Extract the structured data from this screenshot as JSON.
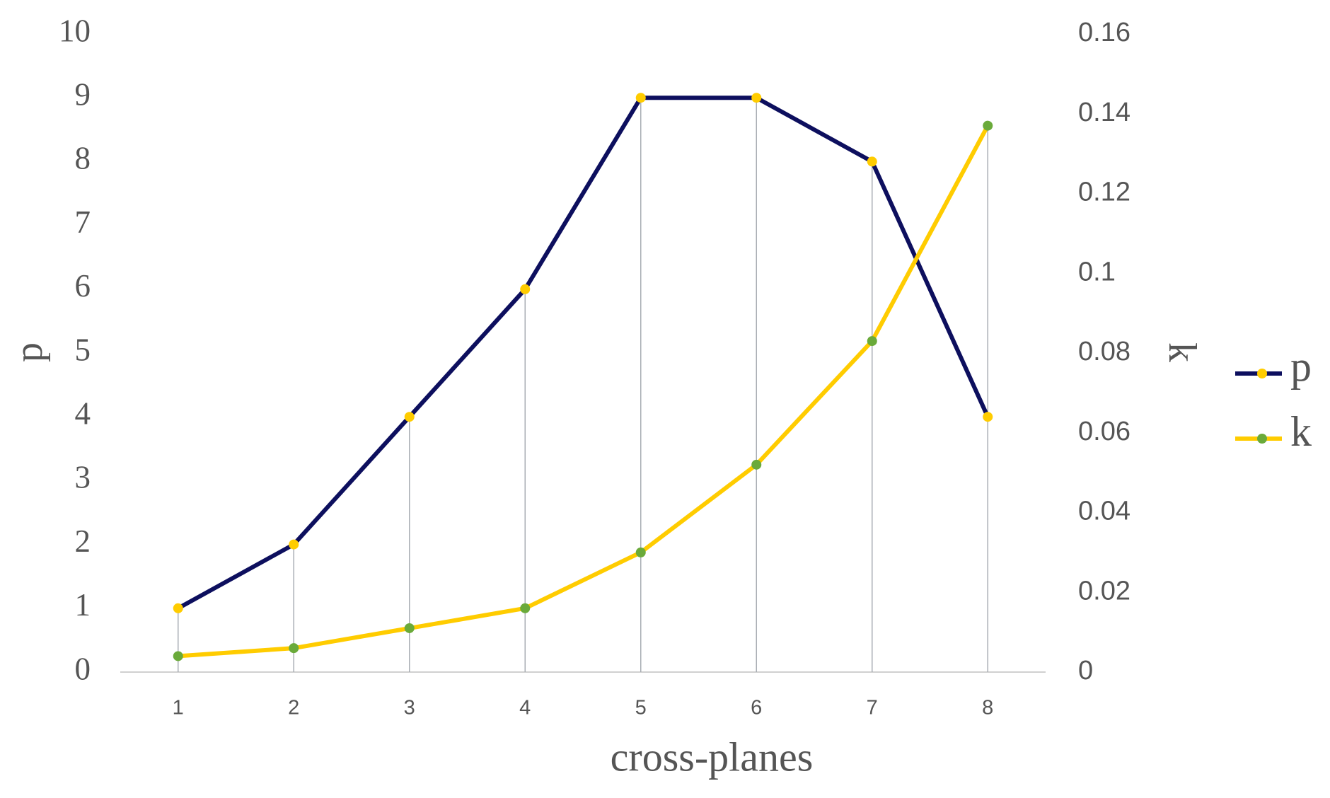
{
  "chart_data": {
    "type": "line",
    "x_label": "cross-planes",
    "y_label": "p",
    "y2_label": "k",
    "categories": [
      "1",
      "2",
      "3",
      "4",
      "5",
      "6",
      "7",
      "8"
    ],
    "series": [
      {
        "name": "p",
        "color": "#0d0f5e",
        "marker_color": "#ffcc00",
        "values": [
          1,
          2,
          4,
          6,
          9,
          9,
          8,
          4
        ]
      },
      {
        "name": "k",
        "color": "#ffcc00",
        "marker_color": "#6aaa3a",
        "axis": "y2",
        "values": [
          0.004,
          0.006,
          0.011,
          0.016,
          0.03,
          0.052,
          0.083,
          0.137
        ]
      }
    ],
    "ylim": [
      0,
      10
    ],
    "yticks": [
      0,
      1,
      2,
      3,
      4,
      5,
      6,
      7,
      8,
      9,
      10
    ],
    "y2lim": [
      0,
      0.16
    ],
    "y2ticks": [
      0,
      0.02,
      0.04,
      0.06,
      0.08,
      0.1,
      0.12,
      0.14,
      0.16
    ],
    "drop_lines": true,
    "legend": "right"
  }
}
